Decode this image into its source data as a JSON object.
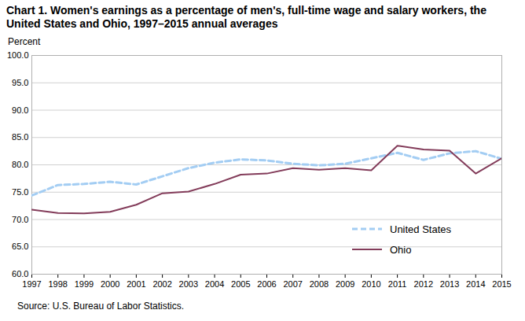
{
  "chart_data": {
    "type": "line",
    "title": "Chart 1. Women's earnings as a percentage of men's, full-time wage and salary workers, the United States and Ohio, 1997–2015  annual averages",
    "y_label": "Percent",
    "source": "Source:  U.S. Bureau of Labor Statistics.",
    "x": [
      1997,
      1998,
      1999,
      2000,
      2001,
      2002,
      2003,
      2004,
      2005,
      2006,
      2007,
      2008,
      2009,
      2010,
      2011,
      2012,
      2013,
      2014,
      2015
    ],
    "series": [
      {
        "name": "United States",
        "color": "#a3cdf3",
        "line_style": "dashed",
        "values": [
          74.4,
          76.3,
          76.5,
          76.9,
          76.4,
          77.9,
          79.4,
          80.4,
          81.0,
          80.8,
          80.2,
          79.9,
          80.2,
          81.2,
          82.2,
          80.9,
          82.1,
          82.5,
          81.1
        ]
      },
      {
        "name": "Ohio",
        "color": "#833c5a",
        "line_style": "solid",
        "values": [
          71.8,
          71.2,
          71.1,
          71.4,
          72.7,
          74.8,
          75.1,
          76.5,
          78.2,
          78.4,
          79.4,
          79.1,
          79.4,
          79.0,
          83.5,
          82.8,
          82.6,
          78.4,
          81.2
        ]
      }
    ],
    "xlim": [
      1997,
      2015
    ],
    "xticks": [
      1997,
      1998,
      1999,
      2000,
      2001,
      2002,
      2003,
      2004,
      2005,
      2006,
      2007,
      2008,
      2009,
      2010,
      2011,
      2012,
      2013,
      2014,
      2015
    ],
    "ylim": [
      60,
      100
    ],
    "yticks": [
      {
        "value": 60,
        "label": "60.0"
      },
      {
        "value": 65,
        "label": "65.0"
      },
      {
        "value": 70,
        "label": "70.0"
      },
      {
        "value": 75,
        "label": "75.0"
      },
      {
        "value": 80,
        "label": "80.0"
      },
      {
        "value": 85,
        "label": "85.0"
      },
      {
        "value": 90,
        "label": "90.0"
      },
      {
        "value": 95,
        "label": "95.0"
      },
      {
        "value": 100,
        "label": "100.0"
      }
    ],
    "grid": true,
    "legend": "lower right"
  }
}
